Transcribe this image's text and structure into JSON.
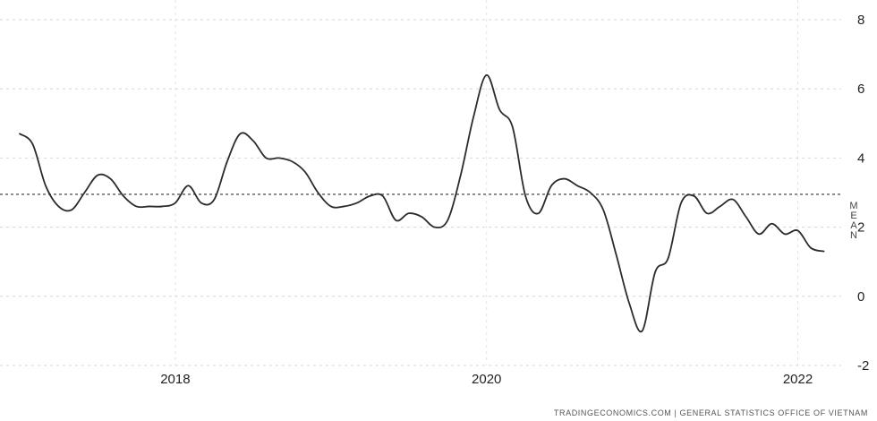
{
  "chart_data": {
    "type": "line",
    "title": "",
    "xlabel": "",
    "ylabel": "",
    "ylim": [
      -2,
      8
    ],
    "yticks": [
      -2,
      0,
      2,
      4,
      6,
      8
    ],
    "xlim": [
      "2017-01",
      "2022-04"
    ],
    "xticks": [
      {
        "label": "2018",
        "x": "2018-01"
      },
      {
        "label": "2020",
        "x": "2020-01"
      },
      {
        "label": "2022",
        "x": "2022-01"
      }
    ],
    "grid": true,
    "mean": {
      "value": 2.95,
      "label": "MEAN"
    },
    "series": [
      {
        "color": "#2b2b2b",
        "x": [
          "2017-01",
          "2017-02",
          "2017-03",
          "2017-04",
          "2017-05",
          "2017-06",
          "2017-07",
          "2017-08",
          "2017-09",
          "2017-10",
          "2017-11",
          "2017-12",
          "2018-01",
          "2018-02",
          "2018-03",
          "2018-04",
          "2018-05",
          "2018-06",
          "2018-07",
          "2018-08",
          "2018-09",
          "2018-10",
          "2018-11",
          "2018-12",
          "2019-01",
          "2019-02",
          "2019-03",
          "2019-04",
          "2019-05",
          "2019-06",
          "2019-07",
          "2019-08",
          "2019-09",
          "2019-10",
          "2019-11",
          "2019-12",
          "2020-01",
          "2020-02",
          "2020-03",
          "2020-04",
          "2020-05",
          "2020-06",
          "2020-07",
          "2020-08",
          "2020-09",
          "2020-10",
          "2020-11",
          "2020-12",
          "2021-01",
          "2021-02",
          "2021-03",
          "2021-04",
          "2021-05",
          "2021-06",
          "2021-07",
          "2021-08",
          "2021-09",
          "2021-10",
          "2021-11",
          "2021-12",
          "2022-01",
          "2022-02",
          "2022-03"
        ],
        "values": [
          4.7,
          4.4,
          3.2,
          2.6,
          2.5,
          3.0,
          3.5,
          3.4,
          2.9,
          2.6,
          2.6,
          2.6,
          2.7,
          3.2,
          2.7,
          2.8,
          3.9,
          4.7,
          4.5,
          4.0,
          4.0,
          3.9,
          3.6,
          3.0,
          2.6,
          2.6,
          2.7,
          2.9,
          2.9,
          2.2,
          2.4,
          2.3,
          2.0,
          2.2,
          3.5,
          5.2,
          6.4,
          5.4,
          4.9,
          2.9,
          2.4,
          3.2,
          3.4,
          3.2,
          3.0,
          2.5,
          1.2,
          -0.2,
          -1.0,
          0.7,
          1.1,
          2.7,
          2.9,
          2.4,
          2.6,
          2.8,
          2.3,
          1.8,
          2.1,
          1.8,
          1.9,
          1.4,
          1.3
        ]
      }
    ]
  },
  "source": "TRADINGECONOMICS.COM  |  GENERAL STATISTICS OFFICE OF VIETNAM"
}
